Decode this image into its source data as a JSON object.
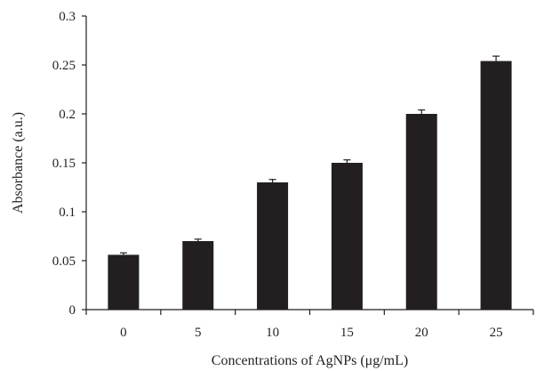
{
  "chart_data": {
    "type": "bar",
    "title": "",
    "xlabel": "Concentrations of AgNPs (μg/mL)",
    "ylabel": "Absorbance (a.u.)",
    "categories": [
      "0",
      "5",
      "10",
      "15",
      "20",
      "25"
    ],
    "values": [
      0.056,
      0.07,
      0.13,
      0.15,
      0.2,
      0.254
    ],
    "error": [
      0.002,
      0.002,
      0.003,
      0.003,
      0.004,
      0.005
    ],
    "ylim": [
      0,
      0.3
    ],
    "yticks": [
      0,
      0.05,
      0.1,
      0.15,
      0.2,
      0.25,
      0.3
    ],
    "ytick_labels": [
      "0",
      "0.05",
      "0.1",
      "0.15",
      "0.2",
      "0.25",
      "0.3"
    ],
    "grid": false,
    "legend": "none",
    "bar_color": "#231f20"
  }
}
